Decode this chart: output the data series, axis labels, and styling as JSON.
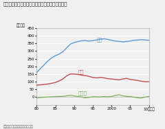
{
  "title": "【図表１】消費、投資、純輸出の推移（名目値）",
  "ylabel": "（兆円）",
  "source": "資料：内閣府「国民経済計算」",
  "xtick_labels": [
    "80",
    "85",
    "90",
    "95",
    "2000",
    "05",
    "10（年）"
  ],
  "consumption": [
    160,
    185,
    210,
    235,
    255,
    270,
    280,
    295,
    320,
    345,
    355,
    362,
    367,
    368,
    365,
    368,
    372,
    376,
    380,
    376,
    370,
    365,
    363,
    360,
    362,
    365,
    370,
    372,
    374,
    372,
    370
  ],
  "investment": [
    78,
    80,
    82,
    85,
    90,
    95,
    105,
    118,
    138,
    150,
    150,
    148,
    143,
    140,
    135,
    128,
    125,
    128,
    125,
    120,
    118,
    115,
    112,
    118,
    122,
    115,
    112,
    108,
    103,
    100,
    100
  ],
  "net_exports": [
    -5,
    -3,
    -1,
    1,
    2,
    3,
    4,
    5,
    8,
    12,
    8,
    4,
    0,
    -5,
    -2,
    3,
    2,
    1,
    4,
    2,
    4,
    10,
    15,
    8,
    5,
    3,
    0,
    -5,
    -6,
    0,
    5
  ],
  "consumption_color": "#5b9bd5",
  "investment_color": "#c0504d",
  "net_exports_color": "#70ad47",
  "bg_color": "#f0f0f0",
  "grid_color": "#ffffff",
  "ylim": [
    -50,
    450
  ],
  "yticks": [
    0,
    50,
    100,
    150,
    200,
    250,
    300,
    350,
    400,
    450
  ],
  "label_consumption": "消費",
  "label_investment": "投資",
  "label_net_exports": "純輸出",
  "title_fontsize": 5.0,
  "label_fontsize": 5.0,
  "tick_fontsize": 4.0,
  "source_fontsize": 3.8
}
